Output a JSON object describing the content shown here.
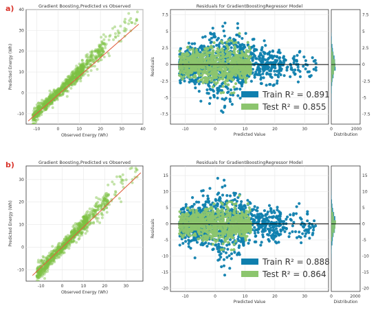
{
  "panels": [
    {
      "letter": "a)",
      "scatter": {
        "title": "Gradient Boosting,Predicted vs Observed",
        "xlabel": "Observed Energy (Wh)",
        "ylabel": "Predicted Energy (Wh)",
        "xlim": [
          -15,
          40
        ],
        "ylim": [
          -15,
          40
        ],
        "xticks": [
          -10,
          0,
          10,
          20,
          30,
          40
        ],
        "yticks": [
          -10,
          0,
          10,
          20,
          30,
          40
        ]
      },
      "residuals": {
        "title": "Residuals for GradientBoostingRegressor Model",
        "xlabel": "Predicted Value",
        "ylabel": "Residuals",
        "xlim": [
          -15,
          38
        ],
        "ylim": [
          -9,
          8.3
        ],
        "xticks": [
          -10,
          0,
          10,
          20,
          30
        ],
        "yticks": [
          -7.5,
          -5.0,
          -2.5,
          0.0,
          2.5,
          5.0,
          7.5
        ],
        "legend_train": "Train R² = 0.891",
        "legend_test": "Test R² = 0.855",
        "dist_xlabel": "Distribution",
        "dist_xticks": [
          0,
          2000
        ],
        "dist_xmax": 2300
      }
    },
    {
      "letter": "b)",
      "scatter": {
        "title": "Gradient Boosting,Predicted vs Observed",
        "xlabel": "Observed Energy (Wh)",
        "ylabel": "Predicted Energy (Wh)",
        "xlim": [
          -17,
          38
        ],
        "ylim": [
          -15,
          36
        ],
        "xticks": [
          -10,
          0,
          10,
          20,
          30
        ],
        "yticks": [
          -10,
          0,
          10,
          20,
          30
        ],
        "legend_train": "",
        "legend_test": ""
      },
      "residuals": {
        "title": "Residuals for GradientBoostingRegressor Model",
        "xlabel": "Predicted Value",
        "ylabel": "Residuals",
        "xlim": [
          -15,
          38
        ],
        "ylim": [
          -21,
          18
        ],
        "xticks": [
          -10,
          0,
          10,
          20,
          30
        ],
        "yticks": [
          -20,
          -15,
          -10,
          -5,
          0,
          5,
          10,
          15
        ],
        "legend_train": "Train R² = 0.888",
        "legend_test": "Test R² = 0.864",
        "dist_xlabel": "Distribution",
        "dist_xticks": [
          0,
          2000
        ],
        "dist_xmax": 2400
      }
    }
  ],
  "colors": {
    "scatter_points": "#7cc242",
    "fit_line": "#e0603f",
    "train": "#0f7fae",
    "test": "#8cc56e",
    "zero_line": "#000000",
    "panel_letter": "#d9342b",
    "axes_edge": "#333333"
  },
  "chart_data": [
    {
      "type": "scatter",
      "title": "Gradient Boosting,Predicted vs Observed",
      "xlabel": "Observed Energy (Wh)",
      "ylabel": "Predicted Energy (Wh)",
      "xlim": [
        -15,
        40
      ],
      "ylim": [
        -15,
        40
      ],
      "grid": true,
      "series": [
        {
          "kind": "points",
          "relation": "y ≈ x, most points between -12 and 15, scattered up to ~37",
          "x": [
            -13,
            -12,
            -10,
            -8,
            -6,
            -4,
            -2,
            0,
            2,
            4,
            6,
            8,
            10,
            12,
            15,
            18,
            20,
            25,
            30,
            36
          ],
          "y": [
            -12.5,
            -11.5,
            -9.5,
            -7.5,
            -6,
            -4.5,
            -2,
            0,
            2,
            4,
            6,
            8,
            10,
            12,
            15,
            18,
            20,
            24,
            30,
            38
          ]
        },
        {
          "kind": "line",
          "x": [
            -14,
            38
          ],
          "y": [
            -13.5,
            33
          ]
        }
      ]
    },
    {
      "type": "scatter",
      "title": "Residuals for GradientBoostingRegressor Model",
      "xlabel": "Predicted Value",
      "ylabel": "Residuals",
      "xlim": [
        -15,
        38
      ],
      "ylim": [
        -9,
        8.3
      ],
      "grid": true,
      "series": [
        {
          "name": "Train R² = 0.891",
          "spread_std": 2.0,
          "x_range": [
            -13,
            35
          ]
        },
        {
          "name": "Test R² = 0.855",
          "spread_std": 1.6,
          "x_range": [
            -13,
            22
          ]
        }
      ],
      "legend": "bottom-right"
    },
    {
      "type": "scatter",
      "title": "Gradient Boosting,Predicted vs Observed",
      "xlabel": "Observed Energy (Wh)",
      "ylabel": "Predicted Energy (Wh)",
      "xlim": [
        -17,
        38
      ],
      "ylim": [
        -15,
        36
      ],
      "grid": true,
      "series": [
        {
          "kind": "points",
          "relation": "y ≈ x, points between -14 and 37",
          "x": [
            -14,
            -12,
            -10,
            -8,
            -5,
            -2,
            0,
            3,
            6,
            10,
            14,
            18,
            22,
            26,
            30,
            33,
            36
          ],
          "y": [
            -13,
            -11.5,
            -9.5,
            -8,
            -5,
            -2,
            0,
            3,
            6,
            10,
            14,
            18,
            22,
            26,
            30,
            32,
            35
          ]
        },
        {
          "kind": "line",
          "x": [
            -14,
            37
          ],
          "y": [
            -12.5,
            33
          ]
        }
      ]
    },
    {
      "type": "scatter",
      "title": "Residuals for GradientBoostingRegressor Model",
      "xlabel": "Predicted Value",
      "ylabel": "Residuals",
      "xlim": [
        -15,
        38
      ],
      "ylim": [
        -21,
        18
      ],
      "grid": true,
      "series": [
        {
          "name": "Train R² = 0.888",
          "spread_std": 4.0,
          "x_range": [
            -13,
            34
          ]
        },
        {
          "name": "Test R² = 0.864",
          "spread_std": 3.0,
          "x_range": [
            -13,
            22
          ]
        }
      ],
      "legend": "bottom-right"
    }
  ]
}
